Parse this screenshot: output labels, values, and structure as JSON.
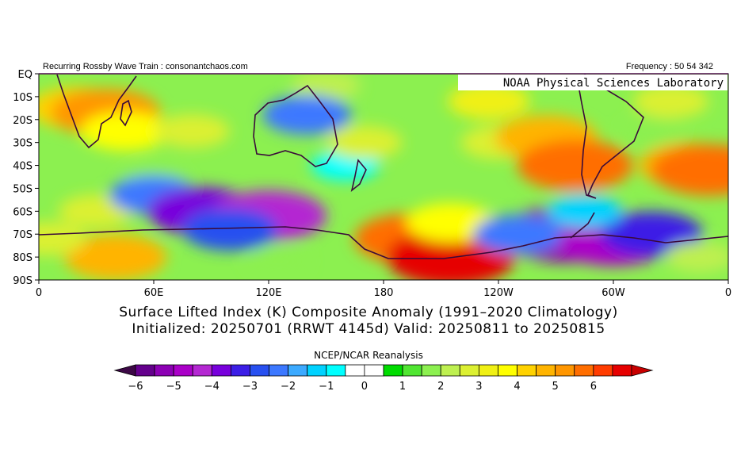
{
  "header": {
    "source": "Recurring Rossby Wave Train : consonantchaos.com",
    "frequency": "Frequency : 50 54 342",
    "lab": "NOAA Physical Sciences Laboratory"
  },
  "map": {
    "lat_labels": [
      "EQ",
      "10S",
      "20S",
      "30S",
      "40S",
      "50S",
      "60S",
      "70S",
      "80S",
      "90S"
    ],
    "lon_labels": [
      "0",
      "60E",
      "120E",
      "180",
      "120W",
      "60W",
      "0"
    ]
  },
  "titles": {
    "line1": "Surface Lifted Index (K) Composite Anomaly (1991–2020 Climatology)",
    "line2": "Initialized: 20250701 (RRWT 4145d) Valid: 20250811 to 20250815"
  },
  "colorbar": {
    "title": "NCEP/NCAR Reanalysis",
    "tick_labels": [
      "−6",
      "−5",
      "−4",
      "−3",
      "−2",
      "−1",
      "0",
      "1",
      "2",
      "3",
      "4",
      "5",
      "6"
    ],
    "colors": [
      "#3c0846",
      "#64008c",
      "#8c00b4",
      "#aa00c8",
      "#b428d2",
      "#7800dc",
      "#3c1ee6",
      "#2850f0",
      "#3c78ff",
      "#3caaff",
      "#00d2ff",
      "#00ffff",
      "#ffffff",
      "#ffffff",
      "#00dc00",
      "#50e632",
      "#8cf050",
      "#bef050",
      "#dcf032",
      "#f0f014",
      "#ffff00",
      "#ffd200",
      "#ffb400",
      "#ff9600",
      "#ff6e00",
      "#ff3c00",
      "#e60000",
      "#c80000"
    ]
  },
  "anomalies": [
    {
      "lon": 20,
      "lat": -15,
      "value": 3.5
    },
    {
      "lon": 35,
      "lat": -17,
      "value": 4.5
    },
    {
      "lon": 45,
      "lat": -25,
      "value": 3
    },
    {
      "lon": 80,
      "lat": -25,
      "value": 2
    },
    {
      "lon": 150,
      "lat": -5,
      "value": 1.5
    },
    {
      "lon": 140,
      "lat": -18,
      "value": -3
    },
    {
      "lon": 60,
      "lat": -45,
      "value": 1
    },
    {
      "lon": 30,
      "lat": -60,
      "value": 2
    },
    {
      "lon": 60,
      "lat": -53,
      "value": -3
    },
    {
      "lon": 85,
      "lat": -60,
      "value": -4.5
    },
    {
      "lon": 40,
      "lat": -80,
      "value": 4
    },
    {
      "lon": 120,
      "lat": -62,
      "value": -5
    },
    {
      "lon": 100,
      "lat": -68,
      "value": -3.5
    },
    {
      "lon": 125,
      "lat": -82,
      "value": 1
    },
    {
      "lon": 160,
      "lat": -40,
      "value": -1.5
    },
    {
      "lon": 170,
      "lat": -30,
      "value": 2
    },
    {
      "lon": 195,
      "lat": -72,
      "value": 5
    },
    {
      "lon": 215,
      "lat": -80,
      "value": 6
    },
    {
      "lon": 215,
      "lat": -65,
      "value": 3
    },
    {
      "lon": 240,
      "lat": -30,
      "value": 2
    },
    {
      "lon": 265,
      "lat": -28,
      "value": 4
    },
    {
      "lon": 280,
      "lat": -40,
      "value": 5
    },
    {
      "lon": 275,
      "lat": -70,
      "value": -6
    },
    {
      "lon": 300,
      "lat": -72,
      "value": -5.5
    },
    {
      "lon": 320,
      "lat": -70,
      "value": -4
    },
    {
      "lon": 250,
      "lat": -70,
      "value": -3
    },
    {
      "lon": 285,
      "lat": -60,
      "value": -2
    },
    {
      "lon": 340,
      "lat": -40,
      "value": 4
    },
    {
      "lon": 350,
      "lat": -42,
      "value": 5
    },
    {
      "lon": 330,
      "lat": -12,
      "value": 2
    },
    {
      "lon": 235,
      "lat": -12,
      "value": 2.5
    },
    {
      "lon": 345,
      "lat": -80,
      "value": 1.5
    },
    {
      "lon": 5,
      "lat": -72,
      "value": 2
    },
    {
      "lon": 320,
      "lat": -25,
      "value": 1
    }
  ]
}
